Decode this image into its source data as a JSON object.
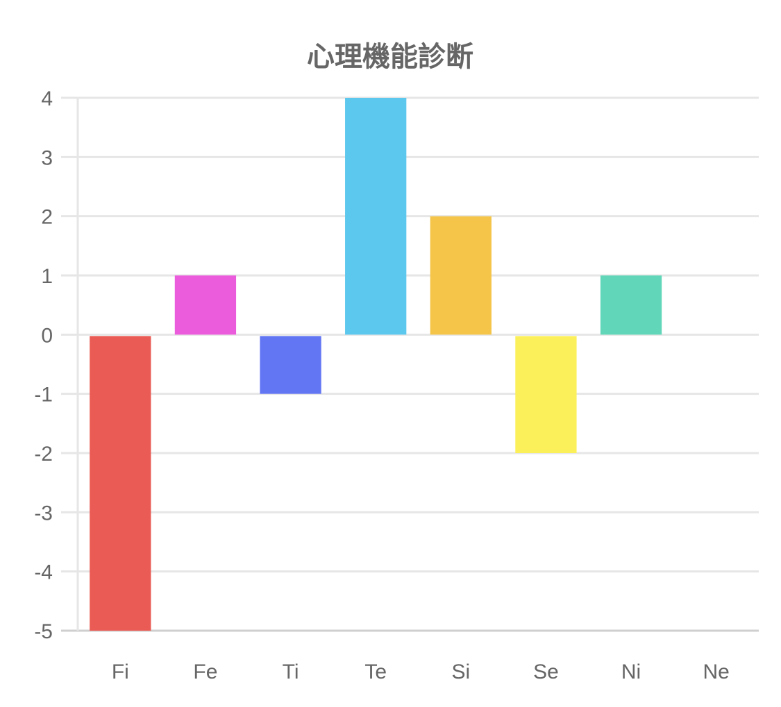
{
  "chart_data": {
    "type": "bar",
    "title": "心理機能診断",
    "categories": [
      "Fi",
      "Fe",
      "Ti",
      "Te",
      "Si",
      "Se",
      "Ni",
      "Ne"
    ],
    "values": [
      -5,
      1,
      -1,
      4,
      2,
      -2,
      1,
      0
    ],
    "colors": [
      "#EA5B55",
      "#EA5CDB",
      "#6276F3",
      "#5DC8EE",
      "#F5C54A",
      "#FCF05A",
      "#62D6B8",
      "#999999"
    ],
    "ylim": [
      -5,
      4
    ],
    "yticks": [
      4,
      3,
      2,
      1,
      0,
      -1,
      -2,
      -3,
      -4,
      -5
    ],
    "grid": true,
    "legend": "none",
    "xlabel": "",
    "ylabel": ""
  }
}
